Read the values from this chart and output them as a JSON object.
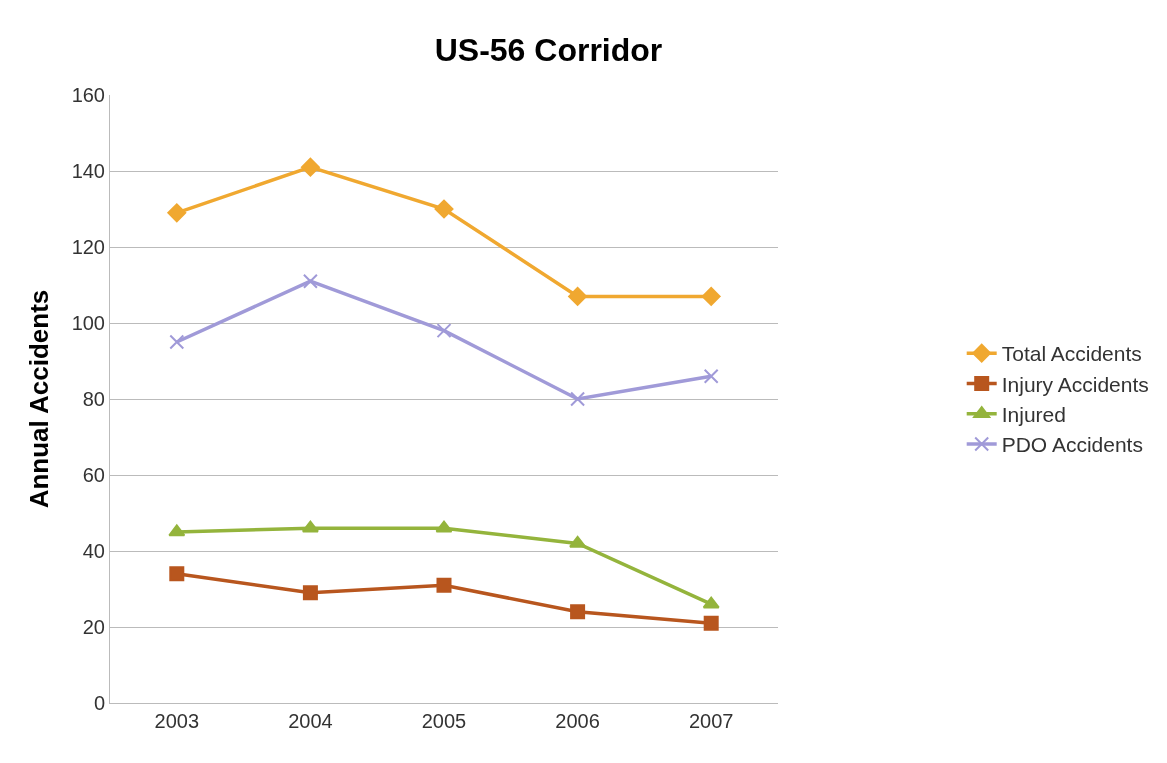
{
  "chart_data": {
    "type": "line",
    "title": "US-56 Corridor",
    "ylabel": "Annual Accidents",
    "categories": [
      "2003",
      "2004",
      "2005",
      "2006",
      "2007"
    ],
    "series": [
      {
        "name": "Total Accidents",
        "color": "#f0a830",
        "marker": "diamond",
        "values": [
          129,
          141,
          130,
          107,
          107
        ]
      },
      {
        "name": "Injury Accidents",
        "color": "#b8561e",
        "marker": "square",
        "values": [
          34,
          29,
          31,
          24,
          21
        ]
      },
      {
        "name": "Injured",
        "color": "#94b43c",
        "marker": "triangle",
        "values": [
          45,
          46,
          46,
          42,
          26
        ]
      },
      {
        "name": "PDO Accidents",
        "color": "#a09ad8",
        "marker": "cross",
        "values": [
          95,
          111,
          98,
          80,
          86
        ]
      }
    ],
    "ylim": [
      0,
      160
    ],
    "yticks": [
      0,
      20,
      40,
      60,
      80,
      100,
      120,
      140,
      160
    ],
    "grid": "y",
    "legend": "right",
    "line_style": "solid"
  }
}
